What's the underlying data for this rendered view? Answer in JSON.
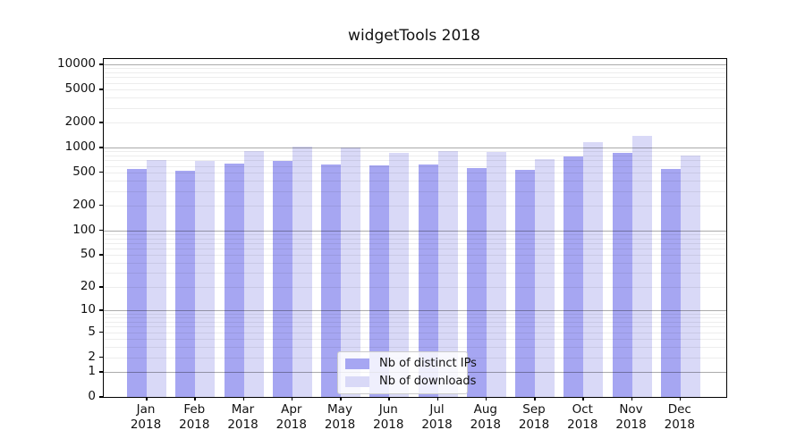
{
  "title": "widgetTools 2018",
  "chart_data": {
    "type": "bar",
    "title": "widgetTools 2018",
    "categories": [
      "Jan",
      "Feb",
      "Mar",
      "Apr",
      "May",
      "Jun",
      "Jul",
      "Aug",
      "Sep",
      "Oct",
      "Nov",
      "Dec"
    ],
    "year": "2018",
    "series": [
      {
        "name": "Nb of distinct IPs",
        "color": "#a6a6f2",
        "values": [
          548,
          525,
          645,
          685,
          620,
          610,
          630,
          570,
          535,
          775,
          860,
          548
        ]
      },
      {
        "name": "Nb of downloads",
        "color": "#d9d9f7",
        "values": [
          700,
          685,
          910,
          1015,
          990,
          860,
          915,
          885,
          730,
          1150,
          1380,
          795
        ]
      }
    ],
    "y_scale": "log10(value+1)",
    "y_tick_values": [
      0,
      1,
      2,
      5,
      10,
      20,
      50,
      100,
      200,
      500,
      1000,
      2000,
      5000,
      10000
    ],
    "y_major_gridlines": [
      1,
      10,
      100,
      1000,
      10000
    ],
    "ylim": [
      0,
      11500
    ],
    "xlabel": "",
    "ylabel": "",
    "grid": "horizontal",
    "legend_position": "bottom-center-inside"
  },
  "legend": {
    "items": [
      {
        "label": "Nb of distinct IPs",
        "color": "#a6a6f2"
      },
      {
        "label": "Nb of downloads",
        "color": "#d9d9f7"
      }
    ]
  }
}
